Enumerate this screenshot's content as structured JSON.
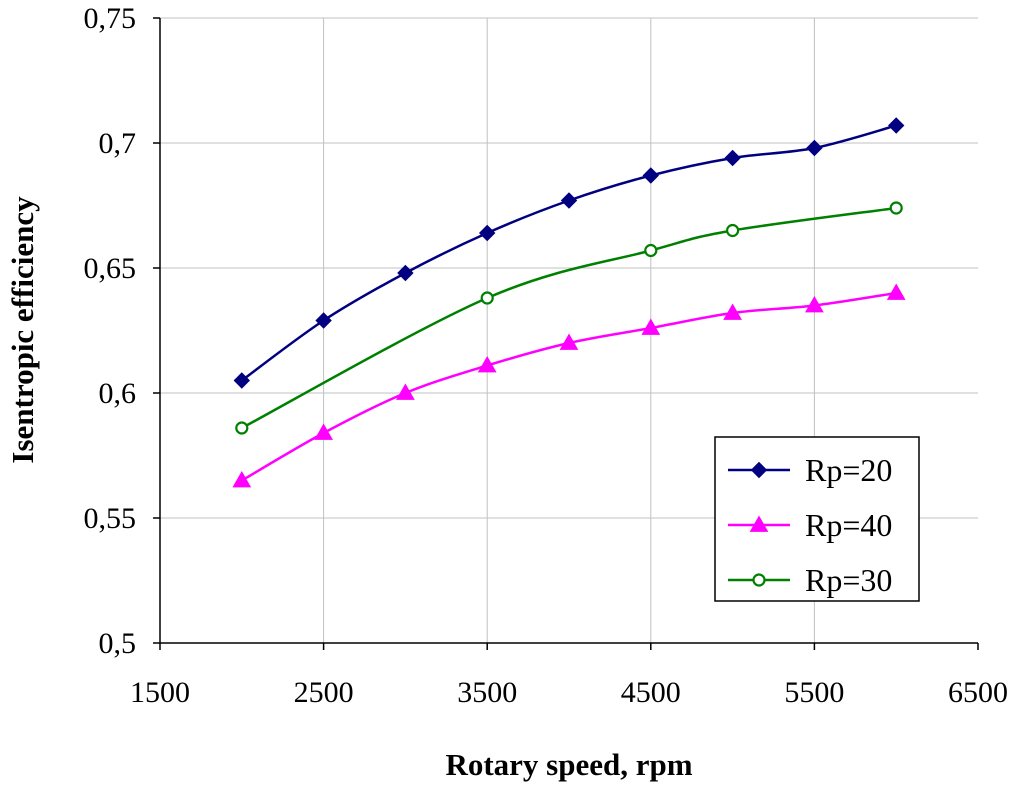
{
  "chart_data": {
    "type": "line",
    "title": "",
    "xlabel": "Rotary speed, rpm",
    "ylabel": "Isentropic efficiency",
    "xlim": [
      1500,
      6500
    ],
    "ylim": [
      0.5,
      0.75
    ],
    "x_ticks": [
      1500,
      2500,
      3500,
      4500,
      5500,
      6500
    ],
    "x_tick_labels": [
      "1500",
      "2500",
      "3500",
      "4500",
      "5500",
      "6500"
    ],
    "y_ticks": [
      0.5,
      0.55,
      0.6,
      0.65,
      0.7,
      0.75
    ],
    "y_tick_labels": [
      "0,5",
      "0,55",
      "0,6",
      "0,65",
      "0,7",
      "0,75"
    ],
    "grid": true,
    "legend_position": "bottom-right",
    "series": [
      {
        "name": "Rp=20",
        "marker": "diamond",
        "color": "#000080",
        "x": [
          2000,
          2500,
          3000,
          3500,
          4000,
          4500,
          5000,
          5500,
          6000
        ],
        "values": [
          0.605,
          0.629,
          0.648,
          0.664,
          0.677,
          0.687,
          0.694,
          0.698,
          0.707
        ]
      },
      {
        "name": "Rp=40",
        "marker": "triangle",
        "color": "#FF00FF",
        "x": [
          2000,
          2500,
          3000,
          3500,
          4000,
          4500,
          5000,
          5500,
          6000
        ],
        "values": [
          0.565,
          0.584,
          0.6,
          0.611,
          0.62,
          0.626,
          0.632,
          0.635,
          0.64
        ]
      },
      {
        "name": "Rp=30",
        "marker": "open-circle",
        "color": "#008000",
        "x": [
          2000,
          3500,
          4500,
          5000,
          6000
        ],
        "values": [
          0.586,
          0.638,
          0.657,
          0.665,
          0.674
        ]
      }
    ]
  }
}
